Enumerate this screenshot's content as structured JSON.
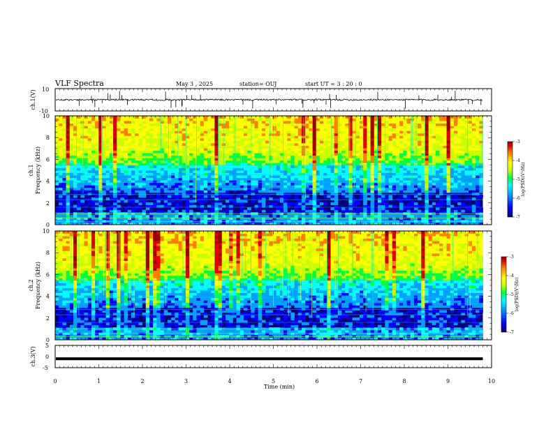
{
  "header": {
    "title": "VLF Spectra",
    "date": "May 3  , 2025",
    "station": "station= OUJ",
    "start": "start  UT  =   3  : 20 : 0"
  },
  "colors": {
    "colormap": [
      "#00007a",
      "#0000ff",
      "#00a0ff",
      "#00ffff",
      "#00ff40",
      "#c8ff00",
      "#ffff00",
      "#ff8000",
      "#e00000",
      "#a00000"
    ]
  },
  "chart_data": [
    {
      "id": "ch1-waveform",
      "type": "line",
      "ylabel": "ch.1(V)",
      "ylim": [
        -10,
        10
      ],
      "yticks": [
        "10",
        "-10"
      ],
      "x_range_min": [
        0,
        9.8
      ],
      "baseline_V": 0,
      "noise_amplitude_V": 1.5
    },
    {
      "id": "ch1-spectrogram",
      "type": "heatmap",
      "channel_label": "ch.1",
      "ylabel": "Frequency (kHz)",
      "ylim": [
        0,
        10
      ],
      "yticks": [
        "0",
        "2",
        "4",
        "6",
        "8",
        "10"
      ],
      "x_range_min": [
        0,
        9.8
      ],
      "colorbar": {
        "label": "log(PSD)(V²/Hz)",
        "range": [
          -7,
          -3
        ],
        "ticks": [
          "-3",
          "-4",
          "-5",
          "-6",
          "-7"
        ]
      }
    },
    {
      "id": "ch2-spectrogram",
      "type": "heatmap",
      "channel_label": "ch.2",
      "ylabel": "Frequency (kHz)",
      "ylim": [
        0,
        10
      ],
      "yticks": [
        "0",
        "2",
        "4",
        "6",
        "8",
        "10"
      ],
      "x_range_min": [
        0,
        9.8
      ],
      "colorbar": {
        "label": "log(PSD)(V²/Hz)",
        "range": [
          -7,
          -3
        ],
        "ticks": [
          "-3",
          "-4",
          "-5",
          "-6",
          "-7"
        ]
      }
    },
    {
      "id": "ch3-waveform",
      "type": "line",
      "ylabel": "ch.3(V)",
      "ylim": [
        -5,
        5
      ],
      "yticks": [
        "5",
        "0",
        "-5"
      ],
      "x_range_min": [
        0,
        9.8
      ],
      "baseline_V": -1
    }
  ],
  "xaxis": {
    "label": "Time  (min)",
    "range": [
      0,
      10
    ],
    "ticks": [
      "0",
      "1",
      "2",
      "3",
      "4",
      "5",
      "6",
      "7",
      "8",
      "9",
      "10"
    ]
  }
}
